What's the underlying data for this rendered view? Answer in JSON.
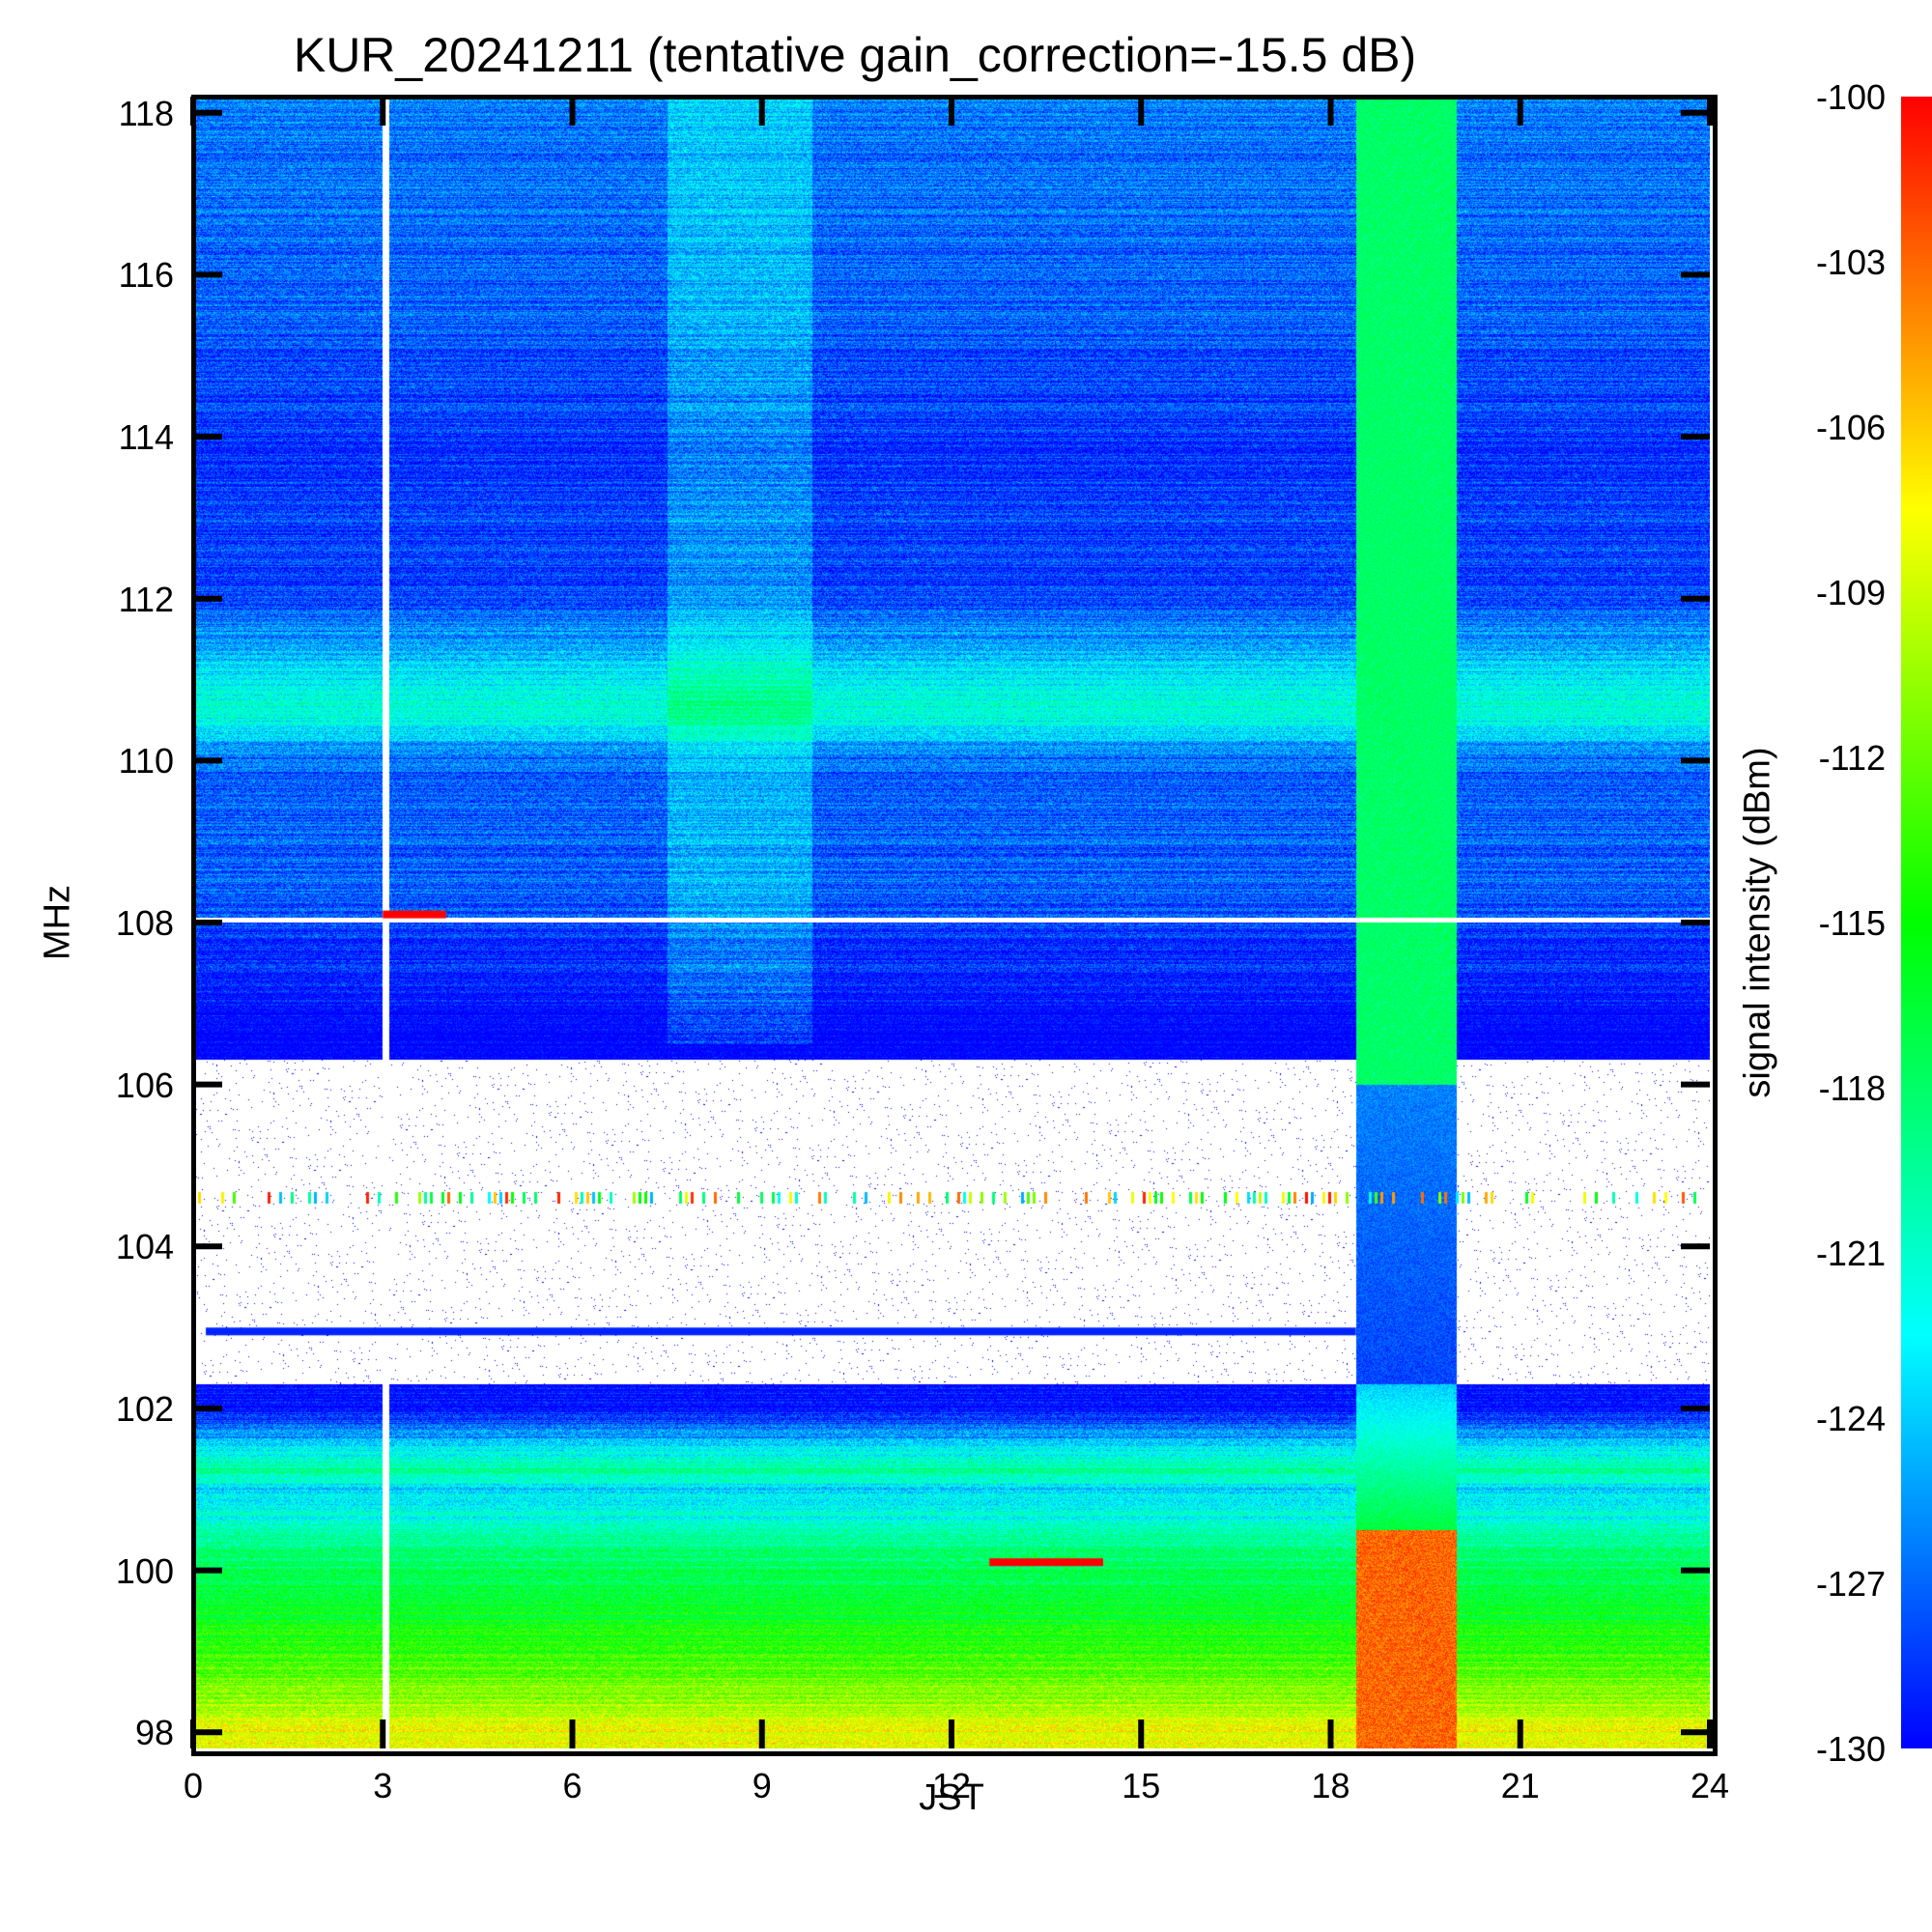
{
  "chart_data": {
    "type": "heatmap",
    "title": "KUR_20241211 (tentative gain_correction=-15.5 dB)",
    "xlabel": "JST",
    "ylabel": "MHz",
    "colorbar_label": "signal intensity (dBm)",
    "xlim": [
      0,
      24
    ],
    "ylim": [
      97.8,
      118.2
    ],
    "x_ticks": [
      "0",
      "3",
      "6",
      "9",
      "12",
      "15",
      "18",
      "21",
      "24"
    ],
    "y_ticks": [
      "98",
      "100",
      "102",
      "104",
      "106",
      "108",
      "110",
      "112",
      "114",
      "116",
      "118"
    ],
    "color_range": [
      -130,
      -100
    ],
    "colorbar_ticks": [
      "-100",
      "-103",
      "-106",
      "-109",
      "-112",
      "-115",
      "-118",
      "-121",
      "-124",
      "-127",
      "-130"
    ],
    "colormap": [
      "#0000ff",
      "#00ffff",
      "#00ff00",
      "#ffff00",
      "#ff0000"
    ],
    "intensity_by_frequency": [
      {
        "freq_mhz": 118,
        "dbm": -126.5
      },
      {
        "freq_mhz": 116,
        "dbm": -127
      },
      {
        "freq_mhz": 114,
        "dbm": -128.5
      },
      {
        "freq_mhz": 112,
        "dbm": -128
      },
      {
        "freq_mhz": 110.6,
        "dbm": -121
      },
      {
        "freq_mhz": 110,
        "dbm": -127
      },
      {
        "freq_mhz": 108.5,
        "dbm": -127
      },
      {
        "freq_mhz": 107,
        "dbm": -130
      },
      {
        "freq_mhz": 106.5,
        "dbm": -131
      },
      {
        "freq_mhz": 102,
        "dbm": -130
      },
      {
        "freq_mhz": 101.2,
        "dbm": -119
      },
      {
        "freq_mhz": 101,
        "dbm": -124
      },
      {
        "freq_mhz": 100.2,
        "dbm": -118
      },
      {
        "freq_mhz": 99,
        "dbm": -114
      },
      {
        "freq_mhz": 98,
        "dbm": -108
      }
    ],
    "features": [
      {
        "type": "data_gap",
        "x": 3.05
      },
      {
        "type": "band_below_floor",
        "y_range": [
          102.3,
          106.3
        ],
        "except_x": [
          18.4,
          20.0
        ]
      },
      {
        "type": "broadband_interference",
        "x_range": [
          18.4,
          20.0
        ],
        "dbm": -118
      },
      {
        "type": "persistent_signal",
        "y": 102.95,
        "x_range": [
          0.2,
          18.4
        ],
        "dbm": -129
      },
      {
        "type": "strong_signal",
        "y": 100.1,
        "x_range": [
          12.6,
          14.4
        ],
        "dbm": -100
      },
      {
        "type": "strong_signal",
        "y": 108.1,
        "x_range": [
          3.0,
          4.0
        ],
        "dbm": -100
      },
      {
        "type": "intermittent_signal",
        "y": 104.6,
        "dbm": -112
      },
      {
        "type": "enhanced_noise",
        "x_range": [
          7.5,
          9.8
        ],
        "dbm": -121
      }
    ]
  }
}
